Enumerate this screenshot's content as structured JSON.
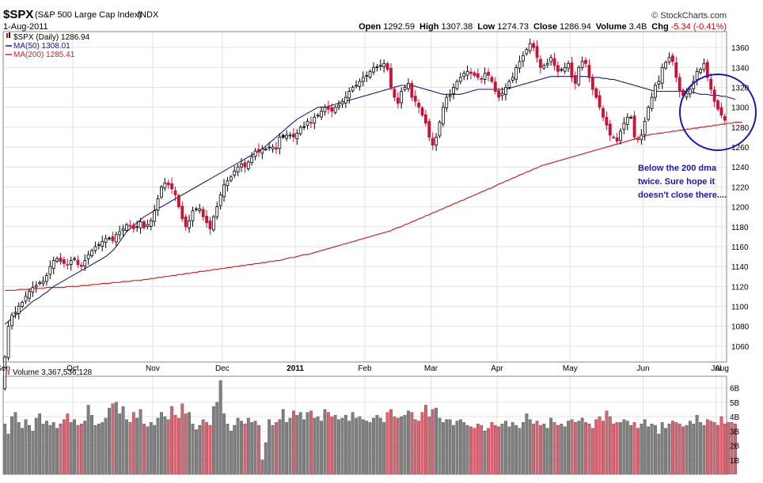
{
  "header": {
    "symbol": "$SPX",
    "name": "(S&P 500 Large Cap Index)",
    "exchange": "INDX",
    "date": "1-Aug-2011",
    "copyright": "© StockCharts.com",
    "stats": [
      {
        "label": "Open",
        "value": "1292.59"
      },
      {
        "label": "High",
        "value": "1307.38"
      },
      {
        "label": "Low",
        "value": "1274.73"
      },
      {
        "label": "Close",
        "value": "1286.94"
      },
      {
        "label": "Volume",
        "value": "3.4B"
      },
      {
        "label": "Chg",
        "value": "-5.34 (-0.41%)",
        "color": "#cc0000"
      }
    ]
  },
  "legend": {
    "price": "$SPX (Daily) 1286.94",
    "ma50": "MA(50) 1308.01",
    "ma200": "MA(200) 1285.41"
  },
  "annotation": {
    "lines": [
      "Below the 200 dma",
      "twice. Sure hope it",
      "doesn't close there...."
    ],
    "color": "#1a1ab8"
  },
  "volume_legend": "Volume 3,367,536,128",
  "colors": {
    "up": "#000000",
    "down": "#cc1133",
    "ma50": "#1a1a80",
    "ma200": "#d42020",
    "vol_up": "#808080",
    "vol_down": "#e06070",
    "grid": "#e2e2e2",
    "circle": "#1818b8"
  },
  "chart_data": [
    {
      "type": "candlestick",
      "title": "$SPX (S&P 500 Large Cap Index) INDX",
      "x_labels": [
        "Sep",
        "Oct",
        "Nov",
        "Dec",
        "2011",
        "Feb",
        "Mar",
        "Apr",
        "May",
        "Jun",
        "Jul",
        "Aug"
      ],
      "y_ticks": [
        1060,
        1080,
        1100,
        1120,
        1140,
        1160,
        1180,
        1200,
        1220,
        1240,
        1260,
        1280,
        1300,
        1320,
        1340,
        1360
      ],
      "ylim": [
        1044,
        1376
      ],
      "grid": true,
      "close": [
        1049,
        1080,
        1091,
        1094,
        1100,
        1104,
        1110,
        1115,
        1119,
        1121,
        1124,
        1125,
        1131,
        1140,
        1146,
        1148,
        1145,
        1143,
        1142,
        1146,
        1148,
        1142,
        1140,
        1146,
        1152,
        1156,
        1160,
        1162,
        1165,
        1168,
        1168,
        1166,
        1172,
        1175,
        1178,
        1182,
        1181,
        1178,
        1180,
        1185,
        1179,
        1182,
        1186,
        1196,
        1208,
        1220,
        1224,
        1222,
        1218,
        1212,
        1200,
        1188,
        1180,
        1186,
        1196,
        1198,
        1198,
        1190,
        1184,
        1178,
        1190,
        1200,
        1212,
        1222,
        1226,
        1230,
        1236,
        1240,
        1243,
        1240,
        1245,
        1250,
        1256,
        1255,
        1258,
        1258,
        1260,
        1260,
        1258,
        1270,
        1270,
        1272,
        1272,
        1270,
        1274,
        1280,
        1280,
        1286,
        1284,
        1290,
        1292,
        1296,
        1300,
        1298,
        1296,
        1300,
        1302,
        1306,
        1310,
        1316,
        1320,
        1322,
        1326,
        1330,
        1332,
        1336,
        1340,
        1340,
        1342,
        1344,
        1338,
        1320,
        1310,
        1304,
        1316,
        1320,
        1324,
        1310,
        1306,
        1300,
        1292,
        1284,
        1270,
        1262,
        1270,
        1285,
        1300,
        1310,
        1312,
        1320,
        1326,
        1330,
        1334,
        1336,
        1334,
        1332,
        1330,
        1328,
        1334,
        1332,
        1326,
        1316,
        1310,
        1314,
        1320,
        1326,
        1330,
        1340,
        1346,
        1352,
        1358,
        1364,
        1360,
        1350,
        1340,
        1342,
        1344,
        1350,
        1342,
        1336,
        1338,
        1340,
        1344,
        1330,
        1324,
        1340,
        1346,
        1344,
        1330,
        1318,
        1310,
        1300,
        1290,
        1282,
        1272,
        1270,
        1266,
        1276,
        1284,
        1290,
        1290,
        1270,
        1268,
        1272,
        1286,
        1300,
        1310,
        1322,
        1326,
        1340,
        1345,
        1350,
        1346,
        1330,
        1316,
        1312,
        1314,
        1318,
        1326,
        1336,
        1338,
        1344,
        1330,
        1318,
        1306,
        1298,
        1292,
        1287
      ],
      "ma50": {
        "name": "MA(50)",
        "values": [
          1082,
          1085,
          1088,
          1091,
          1093,
          1096,
          1099,
          1102,
          1105,
          1107,
          1109,
          1112,
          1114,
          1117,
          1120,
          1122,
          1124,
          1126,
          1128,
          1130,
          1132,
          1134,
          1136,
          1138,
          1140,
          1142,
          1144,
          1146,
          1148,
          1150,
          1153,
          1156,
          1160,
          1165,
          1170,
          1175,
          1178,
          1181,
          1184,
          1187,
          1190,
          1192,
          1194,
          1196,
          1198,
          1200,
          1202,
          1204,
          1206,
          1208,
          1210,
          1212,
          1214,
          1216,
          1218,
          1220,
          1222,
          1224,
          1226,
          1228,
          1230,
          1232,
          1234,
          1236,
          1238,
          1240,
          1242,
          1244,
          1246,
          1248,
          1250,
          1252,
          1254,
          1256,
          1258,
          1261,
          1264,
          1267,
          1270,
          1273,
          1276,
          1279,
          1282,
          1285,
          1288,
          1290,
          1292,
          1294,
          1296,
          1298,
          1300,
          1300,
          1300,
          1301,
          1302,
          1303,
          1304,
          1305,
          1306,
          1307,
          1308,
          1309,
          1310,
          1311,
          1312,
          1313,
          1314,
          1315,
          1316,
          1317,
          1318,
          1319,
          1320,
          1321,
          1322,
          1322,
          1322,
          1322,
          1321,
          1320,
          1319,
          1318,
          1317,
          1316,
          1315,
          1314,
          1313,
          1313,
          1313,
          1313,
          1313,
          1313,
          1314,
          1315,
          1316,
          1317,
          1318,
          1318,
          1318,
          1318,
          1318,
          1318,
          1318,
          1318,
          1318,
          1319,
          1320,
          1321,
          1322,
          1323,
          1324,
          1325,
          1326,
          1327,
          1328,
          1329,
          1330,
          1331,
          1331,
          1331,
          1331,
          1331,
          1331,
          1331,
          1331,
          1331,
          1331,
          1331,
          1330,
          1330,
          1330,
          1330,
          1329,
          1329,
          1328,
          1328,
          1327,
          1326,
          1325,
          1324,
          1323,
          1322,
          1321,
          1320,
          1319,
          1318,
          1317,
          1316,
          1316,
          1316,
          1316,
          1316,
          1316,
          1316,
          1316,
          1316,
          1316,
          1316,
          1315,
          1314,
          1313,
          1313,
          1313,
          1312,
          1312,
          1312,
          1311,
          1311,
          1310,
          1309,
          1308
        ]
      },
      "ma200": {
        "name": "MA(200)",
        "values": [
          1116,
          1116,
          1116,
          1116,
          1117,
          1117,
          1117,
          1117,
          1118,
          1118,
          1118,
          1118,
          1119,
          1119,
          1119,
          1119,
          1119,
          1119,
          1120,
          1120,
          1120,
          1120,
          1121,
          1121,
          1121,
          1122,
          1122,
          1122,
          1123,
          1123,
          1123,
          1124,
          1124,
          1124,
          1125,
          1125,
          1125,
          1126,
          1126,
          1126,
          1127,
          1127,
          1128,
          1128,
          1129,
          1129,
          1130,
          1130,
          1131,
          1131,
          1132,
          1132,
          1133,
          1133,
          1134,
          1134,
          1135,
          1135,
          1136,
          1136,
          1137,
          1137,
          1138,
          1138,
          1139,
          1139,
          1140,
          1140,
          1141,
          1141,
          1142,
          1142,
          1143,
          1143,
          1144,
          1144,
          1145,
          1145,
          1146,
          1146,
          1147,
          1148,
          1149,
          1149,
          1150,
          1151,
          1152,
          1152,
          1153,
          1154,
          1155,
          1156,
          1157,
          1158,
          1159,
          1160,
          1161,
          1162,
          1163,
          1164,
          1165,
          1166,
          1167,
          1168,
          1169,
          1170,
          1171,
          1172,
          1173,
          1174,
          1175,
          1176,
          1178,
          1179,
          1180,
          1182,
          1183,
          1185,
          1186,
          1188,
          1189,
          1191,
          1192,
          1194,
          1195,
          1197,
          1198,
          1200,
          1201,
          1203,
          1204,
          1206,
          1207,
          1209,
          1210,
          1212,
          1213,
          1215,
          1216,
          1218,
          1219,
          1221,
          1223,
          1224,
          1226,
          1227,
          1229,
          1230,
          1232,
          1233,
          1235,
          1236,
          1238,
          1239,
          1241,
          1242,
          1243,
          1244,
          1245,
          1246,
          1247,
          1248,
          1249,
          1250,
          1251,
          1252,
          1253,
          1254,
          1255,
          1256,
          1257,
          1258,
          1259,
          1260,
          1261,
          1262,
          1263,
          1264,
          1265,
          1266,
          1267,
          1268,
          1269,
          1270,
          1271,
          1272,
          1273,
          1273,
          1274,
          1274,
          1275,
          1275,
          1276,
          1276,
          1277,
          1277,
          1278,
          1278,
          1279,
          1279,
          1280,
          1280,
          1281,
          1281,
          1282,
          1282,
          1283,
          1283,
          1284,
          1284,
          1285,
          1285,
          1285
        ]
      },
      "overlay": "circle around Jul-Aug price action"
    },
    {
      "type": "bar",
      "title": "Volume 3,367,536,128",
      "y_ticks": [
        "1B",
        "2B",
        "3B",
        "4B",
        "5B",
        "6B"
      ],
      "ylim": [
        0,
        6.8
      ],
      "values_billions": [
        3.5,
        2.8,
        4.0,
        4.3,
        3.6,
        3.2,
        3.8,
        3.4,
        3.0,
        3.9,
        4.2,
        3.5,
        3.7,
        3.4,
        3.6,
        3.2,
        3.5,
        3.8,
        4.2,
        3.6,
        3.8,
        3.4,
        3.5,
        3.7,
        4.8,
        4.1,
        3.4,
        3.5,
        3.6,
        3.9,
        4.6,
        4.9,
        5.0,
        4.2,
        4.7,
        3.8,
        3.6,
        4.3,
        3.9,
        4.5,
        3.5,
        3.3,
        3.6,
        3.4,
        3.9,
        4.3,
        4.0,
        3.8,
        4.7,
        4.1,
        3.9,
        4.9,
        4.2,
        4.3,
        3.5,
        3.1,
        3.4,
        3.8,
        3.6,
        3.4,
        4.7,
        5.0,
        6.5,
        4.2,
        3.5,
        3.0,
        3.4,
        3.9,
        3.7,
        3.5,
        3.9,
        3.6,
        3.7,
        3.4,
        1.0,
        2.2,
        3.8,
        3.4,
        3.6,
        3.8,
        4.5,
        3.6,
        3.9,
        4.4,
        4.1,
        4.3,
        3.8,
        4.3,
        4.4,
        3.9,
        4.0,
        3.7,
        4.5,
        4.3,
        4.0,
        4.1,
        3.8,
        3.9,
        4.1,
        3.7,
        4.3,
        3.9,
        4.0,
        3.8,
        3.7,
        3.6,
        3.9,
        4.1,
        3.9,
        3.6,
        4.3,
        4.5,
        4.0,
        3.9,
        4.0,
        4.1,
        4.4,
        4.3,
        3.8,
        3.7,
        4.3,
        4.8,
        4.0,
        4.5,
        4.6,
        3.9,
        3.6,
        3.8,
        3.8,
        3.4,
        3.7,
        3.8,
        3.6,
        3.4,
        3.3,
        3.2,
        3.5,
        3.4,
        3.0,
        3.2,
        3.6,
        3.4,
        3.3,
        3.5,
        3.7,
        3.3,
        3.6,
        3.4,
        3.2,
        3.6,
        4.2,
        3.8,
        3.5,
        3.7,
        3.4,
        3.5,
        3.2,
        3.9,
        3.6,
        3.4,
        3.5,
        3.3,
        3.7,
        3.8,
        3.6,
        3.7,
        3.9,
        3.6,
        3.5,
        3.2,
        3.8,
        4.0,
        3.7,
        4.4,
        4.0,
        3.5,
        3.6,
        3.6,
        3.8,
        3.7,
        3.4,
        3.6,
        3.2,
        3.5,
        3.8,
        3.3,
        3.5,
        3.4,
        2.8,
        3.6,
        3.2,
        3.5,
        3.7,
        3.6,
        3.5,
        3.3,
        3.4,
        3.7,
        3.5,
        4.1,
        3.6,
        3.4,
        3.8,
        3.7,
        3.6,
        3.4,
        4.0,
        3.5,
        3.6,
        3.6,
        3.5
      ]
    }
  ]
}
